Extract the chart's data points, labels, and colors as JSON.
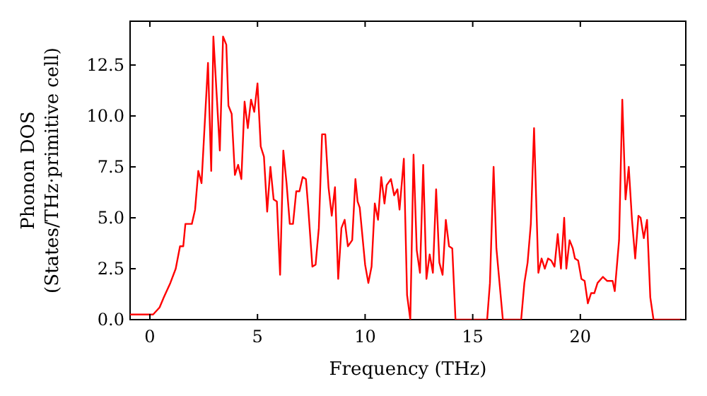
{
  "chart_data": {
    "type": "line",
    "xlabel": "Frequency (THz)",
    "ylabel": "Phonon DOS\n(States/THz·primitive cell)",
    "xlim": [
      -0.92,
      24.9
    ],
    "xticks": [
      0,
      5,
      10,
      15,
      20
    ],
    "ylim": [
      0,
      14.65
    ],
    "yticks": [
      {
        "value": 0,
        "label": "0.0"
      },
      {
        "value": 2.5,
        "label": "2.5"
      },
      {
        "value": 5,
        "label": "5.0"
      },
      {
        "value": 7.5,
        "label": "7.5"
      },
      {
        "value": 10,
        "label": "10.0"
      },
      {
        "value": 12.5,
        "label": "12.5"
      }
    ],
    "grid": false,
    "marker": "none",
    "line_style": "solid",
    "series": [
      {
        "color": "#ff0000",
        "x": [
          -0.92,
          0.15,
          0.45,
          0.65,
          0.95,
          1.2,
          1.4,
          1.55,
          1.65,
          1.95,
          2.1,
          2.25,
          2.4,
          2.7,
          2.85,
          2.95,
          3.25,
          3.4,
          3.55,
          3.65,
          3.8,
          3.95,
          4.1,
          4.25,
          4.4,
          4.55,
          4.7,
          4.85,
          5.0,
          5.15,
          5.3,
          5.45,
          5.6,
          5.75,
          5.9,
          6.05,
          6.2,
          6.35,
          6.5,
          6.65,
          6.8,
          6.95,
          7.1,
          7.25,
          7.35,
          7.55,
          7.7,
          7.85,
          8.0,
          8.15,
          8.3,
          8.45,
          8.6,
          8.75,
          8.9,
          9.05,
          9.2,
          9.4,
          9.55,
          9.65,
          9.75,
          10.0,
          10.15,
          10.3,
          10.45,
          10.6,
          10.75,
          10.9,
          11.0,
          11.2,
          11.35,
          11.5,
          11.6,
          11.8,
          11.95,
          12.1,
          12.25,
          12.4,
          12.55,
          12.7,
          12.85,
          13.0,
          13.15,
          13.3,
          13.45,
          13.6,
          13.75,
          13.9,
          14.05,
          14.2,
          15.67,
          15.8,
          15.97,
          16.1,
          16.4,
          17.25,
          17.4,
          17.55,
          17.7,
          17.85,
          18.05,
          18.2,
          18.35,
          18.5,
          18.65,
          18.8,
          18.95,
          19.1,
          19.25,
          19.35,
          19.5,
          19.65,
          19.75,
          19.9,
          20.05,
          20.2,
          20.35,
          20.5,
          20.65,
          20.8,
          21.05,
          21.25,
          21.5,
          21.6,
          21.8,
          21.95,
          22.1,
          22.25,
          22.4,
          22.55,
          22.7,
          22.8,
          22.95,
          23.1,
          23.25,
          23.4,
          24.7
        ],
        "values": [
          0.25,
          0.25,
          0.6,
          1.1,
          1.8,
          2.5,
          3.6,
          3.6,
          4.7,
          4.7,
          5.4,
          7.3,
          6.7,
          12.6,
          7.3,
          13.9,
          8.3,
          13.9,
          13.5,
          10.5,
          10.1,
          7.1,
          7.6,
          6.9,
          10.7,
          9.4,
          10.8,
          10.2,
          11.6,
          8.5,
          8.0,
          5.3,
          7.5,
          5.9,
          5.8,
          2.2,
          8.3,
          6.7,
          4.7,
          4.7,
          6.3,
          6.3,
          7.0,
          6.9,
          5.6,
          2.6,
          2.7,
          4.5,
          9.1,
          9.1,
          6.5,
          5.1,
          6.5,
          2.0,
          4.5,
          4.9,
          3.6,
          3.9,
          6.9,
          5.8,
          5.5,
          2.7,
          1.8,
          2.6,
          5.7,
          4.9,
          7.0,
          5.7,
          6.6,
          6.9,
          6.1,
          6.4,
          5.4,
          7.9,
          1.2,
          0,
          8.1,
          3.4,
          2.3,
          7.6,
          2.0,
          3.2,
          2.3,
          6.4,
          2.8,
          2.2,
          4.9,
          3.6,
          3.5,
          0,
          0,
          1.8,
          7.5,
          3.5,
          0,
          0,
          1.8,
          2.8,
          4.7,
          9.4,
          2.3,
          3.0,
          2.5,
          3.0,
          2.9,
          2.6,
          4.2,
          2.5,
          5.0,
          2.5,
          3.9,
          3.5,
          3.0,
          2.9,
          2.0,
          1.9,
          0.8,
          1.3,
          1.3,
          1.8,
          2.1,
          1.9,
          1.9,
          1.4,
          3.9,
          10.8,
          5.9,
          7.5,
          4.9,
          3.0,
          5.1,
          5.0,
          4.0,
          4.9,
          1.1,
          0,
          0
        ]
      }
    ]
  }
}
